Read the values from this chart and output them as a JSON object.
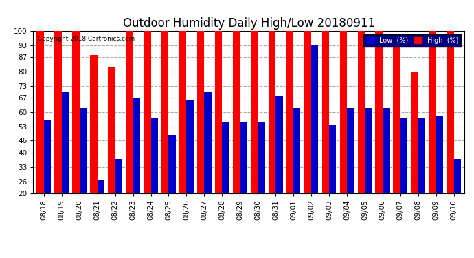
{
  "title": "Outdoor Humidity Daily High/Low 20180911",
  "copyright": "Copyright 2018 Cartronics.com",
  "categories": [
    "08/18",
    "08/19",
    "08/20",
    "08/21",
    "08/22",
    "08/23",
    "08/24",
    "08/25",
    "08/26",
    "08/27",
    "08/28",
    "08/29",
    "08/30",
    "08/31",
    "09/01",
    "09/02",
    "09/03",
    "09/04",
    "09/05",
    "09/06",
    "09/07",
    "09/08",
    "09/09",
    "09/10"
  ],
  "high_values": [
    100,
    100,
    100,
    88,
    82,
    100,
    100,
    100,
    100,
    100,
    100,
    100,
    100,
    100,
    100,
    100,
    100,
    100,
    100,
    100,
    96,
    80,
    100,
    100
  ],
  "low_values": [
    56,
    70,
    62,
    27,
    37,
    67,
    57,
    49,
    66,
    70,
    55,
    55,
    55,
    68,
    62,
    93,
    54,
    62,
    62,
    62,
    57,
    57,
    58,
    37
  ],
  "high_color": "#ff0000",
  "low_color": "#0000cc",
  "bg_color": "#ffffff",
  "plot_bg_color": "#ffffff",
  "grid_color": "#aaaaaa",
  "ylim": [
    20,
    100
  ],
  "yticks": [
    20,
    26,
    33,
    40,
    46,
    53,
    60,
    67,
    73,
    80,
    87,
    93,
    100
  ],
  "title_fontsize": 12,
  "tick_fontsize": 7.5,
  "bar_width": 0.4,
  "legend_bg": "#000080",
  "legend_fontsize": 7
}
